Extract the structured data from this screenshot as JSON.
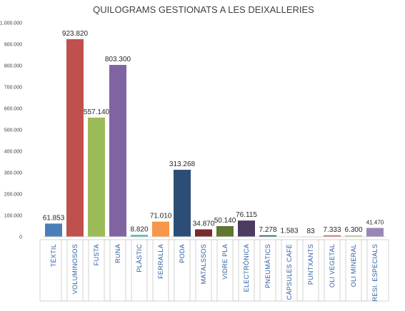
{
  "chart_data": {
    "type": "bar",
    "title": "QUILOGRAMS GESTIONATS A LES DEIXALLERIES",
    "xlabel": "",
    "ylabel": "",
    "ylim": [
      0,
      1000000
    ],
    "yticks": [
      0,
      100000,
      200000,
      300000,
      400000,
      500000,
      600000,
      700000,
      800000,
      900000,
      1000000
    ],
    "ytick_labels": [
      "0",
      "100.000",
      "200.000",
      "300.000",
      "400.000",
      "500.000",
      "600.000",
      "700.000",
      "800.000",
      "900.000",
      "1.000.000"
    ],
    "grid": false,
    "legend": "none",
    "categories": [
      "TÈXTIL",
      "VOLUMINOSOS",
      "FUSTA",
      "RUNA",
      "PLÀSTIC",
      "FERRALLA",
      "PODA",
      "MATALSSOS",
      "VIDRE PLA",
      "ELECTRÒNICA",
      "PNEUMÀTICS",
      "CÀPSULES CAFÈ",
      "PUNTXANTS",
      "OLI VEGETAL",
      "OLI MINERAL",
      "RESI. ESPECIALS"
    ],
    "values": [
      61853,
      923820,
      557140,
      803300,
      8820,
      71010,
      313268,
      34870,
      50140,
      76115,
      7278,
      1583,
      83,
      7333,
      6300,
      41470
    ],
    "value_labels": [
      "61.853",
      "923.820",
      "557.140",
      "803.300",
      "8.820",
      "71.010",
      "313.268",
      "34.870",
      "50.140",
      "76.115",
      "7.278",
      "1.583",
      "83",
      "7.333",
      "6.300",
      "41.470"
    ],
    "colors": [
      "#4a7ebb",
      "#c0504d",
      "#9bbb59",
      "#8064a2",
      "#4bacc6",
      "#f79646",
      "#2c4d75",
      "#772c2a",
      "#5f7530",
      "#4d3b62",
      "#276a7c",
      "#b65708",
      "#729aca",
      "#d86d6b",
      "#afcb7c",
      "#9a86b6"
    ]
  }
}
